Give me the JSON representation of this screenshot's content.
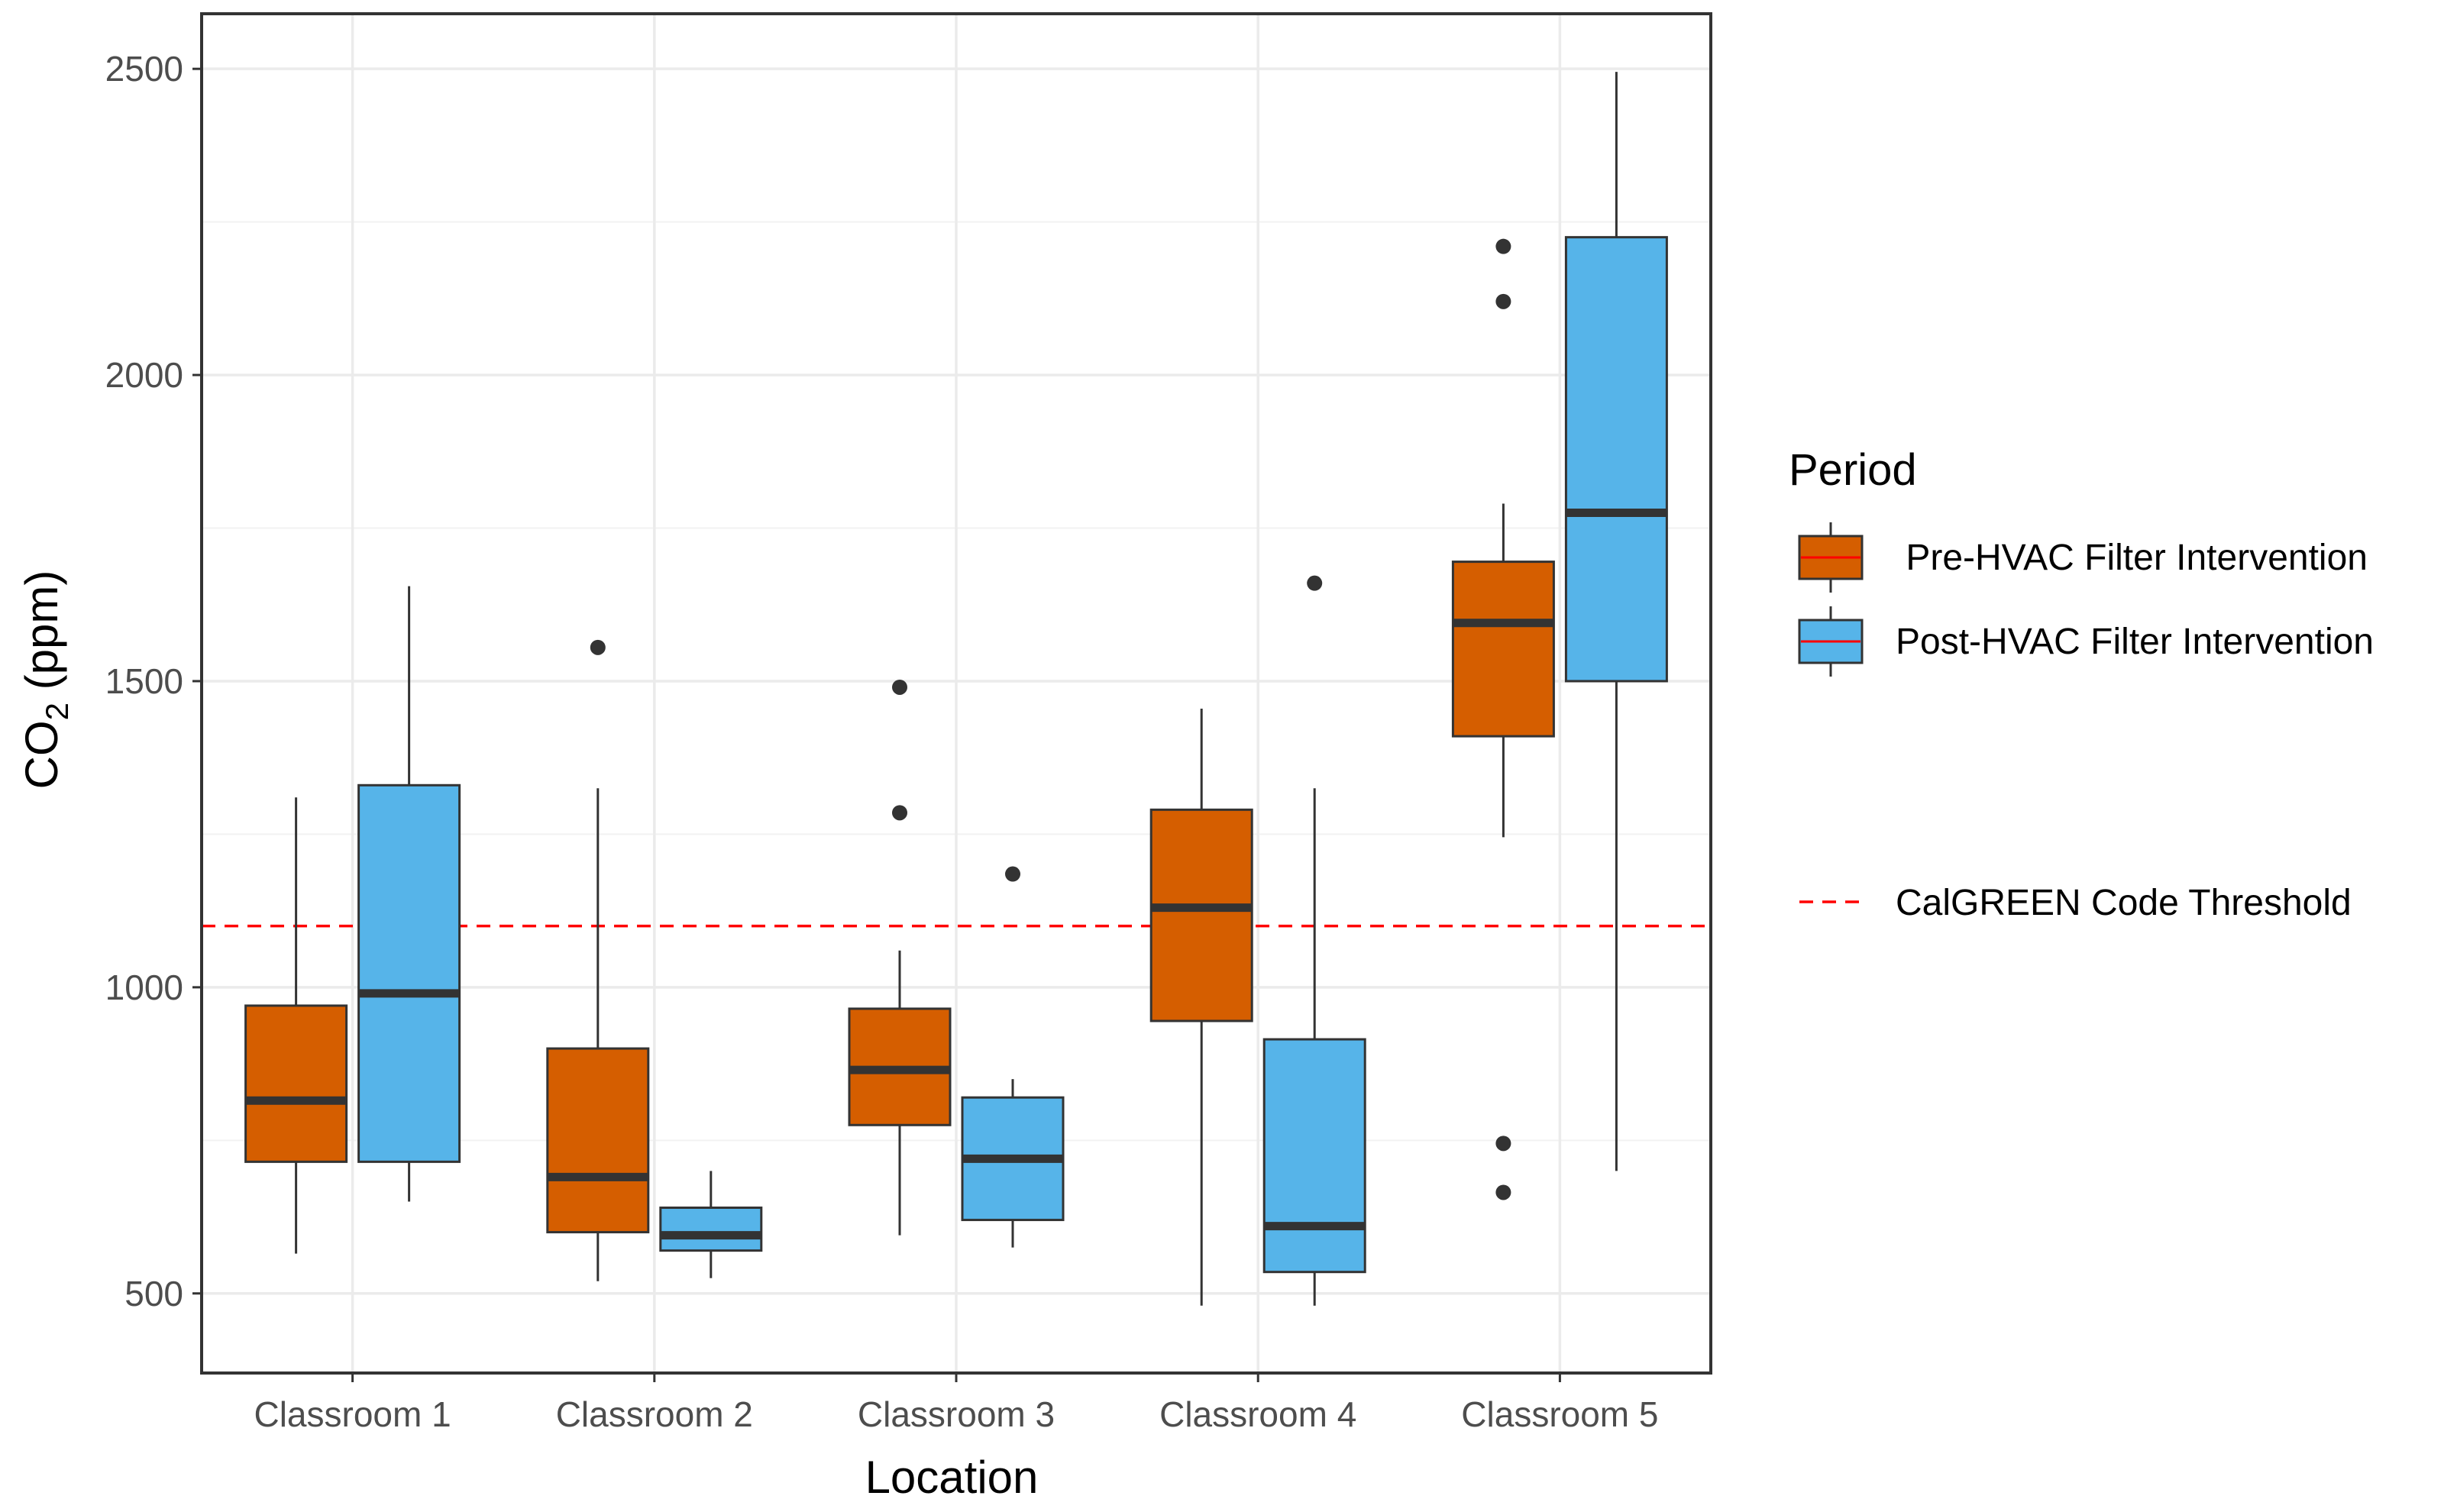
{
  "chart_data": {
    "type": "boxplot",
    "title": "",
    "xlabel": "Location",
    "ylabel": {
      "prefix": "CO",
      "subscript": "2",
      "suffix": " (ppm)"
    },
    "ylim": [
      370,
      2590
    ],
    "yticks": [
      500,
      1000,
      1500,
      2000,
      2500
    ],
    "ytick_labels": [
      "500",
      "1000",
      "1500",
      "2000",
      "2500"
    ],
    "grid": true,
    "legend_position": "right",
    "categories": [
      "Classroom 1",
      "Classroom 2",
      "Classroom 3",
      "Classroom 4",
      "Classroom 5"
    ],
    "legend": {
      "title": "Period",
      "threshold_label": "CalGREEN Code Threshold"
    },
    "threshold": {
      "value": 1100,
      "color": "#ff0000",
      "label": "CalGREEN Code Threshold"
    },
    "series": [
      {
        "name": " Pre-HVAC Filter Intervention",
        "color": "#d55e00",
        "boxes": [
          {
            "min": 565,
            "q1": 715,
            "median": 815,
            "q3": 970,
            "max": 1310,
            "outliers": []
          },
          {
            "min": 520,
            "q1": 600,
            "median": 690,
            "q3": 900,
            "max": 1325,
            "outliers": [
              1555
            ]
          },
          {
            "min": 595,
            "q1": 775,
            "median": 865,
            "q3": 965,
            "max": 1060,
            "outliers": [
              1285,
              1490
            ]
          },
          {
            "min": 480,
            "q1": 945,
            "median": 1130,
            "q3": 1290,
            "max": 1455,
            "outliers": []
          },
          {
            "min": 1245,
            "q1": 1410,
            "median": 1595,
            "q3": 1695,
            "max": 1790,
            "outliers": [
              665,
              745,
              2120,
              2210
            ]
          }
        ]
      },
      {
        "name": "Post-HVAC Filter Intervention",
        "color": "#56b4e9",
        "boxes": [
          {
            "min": 650,
            "q1": 715,
            "median": 990,
            "q3": 1330,
            "max": 1655,
            "outliers": []
          },
          {
            "min": 525,
            "q1": 570,
            "median": 595,
            "q3": 640,
            "max": 700,
            "outliers": []
          },
          {
            "min": 575,
            "q1": 620,
            "median": 720,
            "q3": 820,
            "max": 850,
            "outliers": [
              1185
            ]
          },
          {
            "min": 480,
            "q1": 535,
            "median": 610,
            "q3": 915,
            "max": 1325,
            "outliers": [
              1660
            ]
          },
          {
            "min": 700,
            "q1": 1500,
            "median": 1775,
            "q3": 2225,
            "max": 2495,
            "outliers": []
          }
        ]
      }
    ]
  }
}
